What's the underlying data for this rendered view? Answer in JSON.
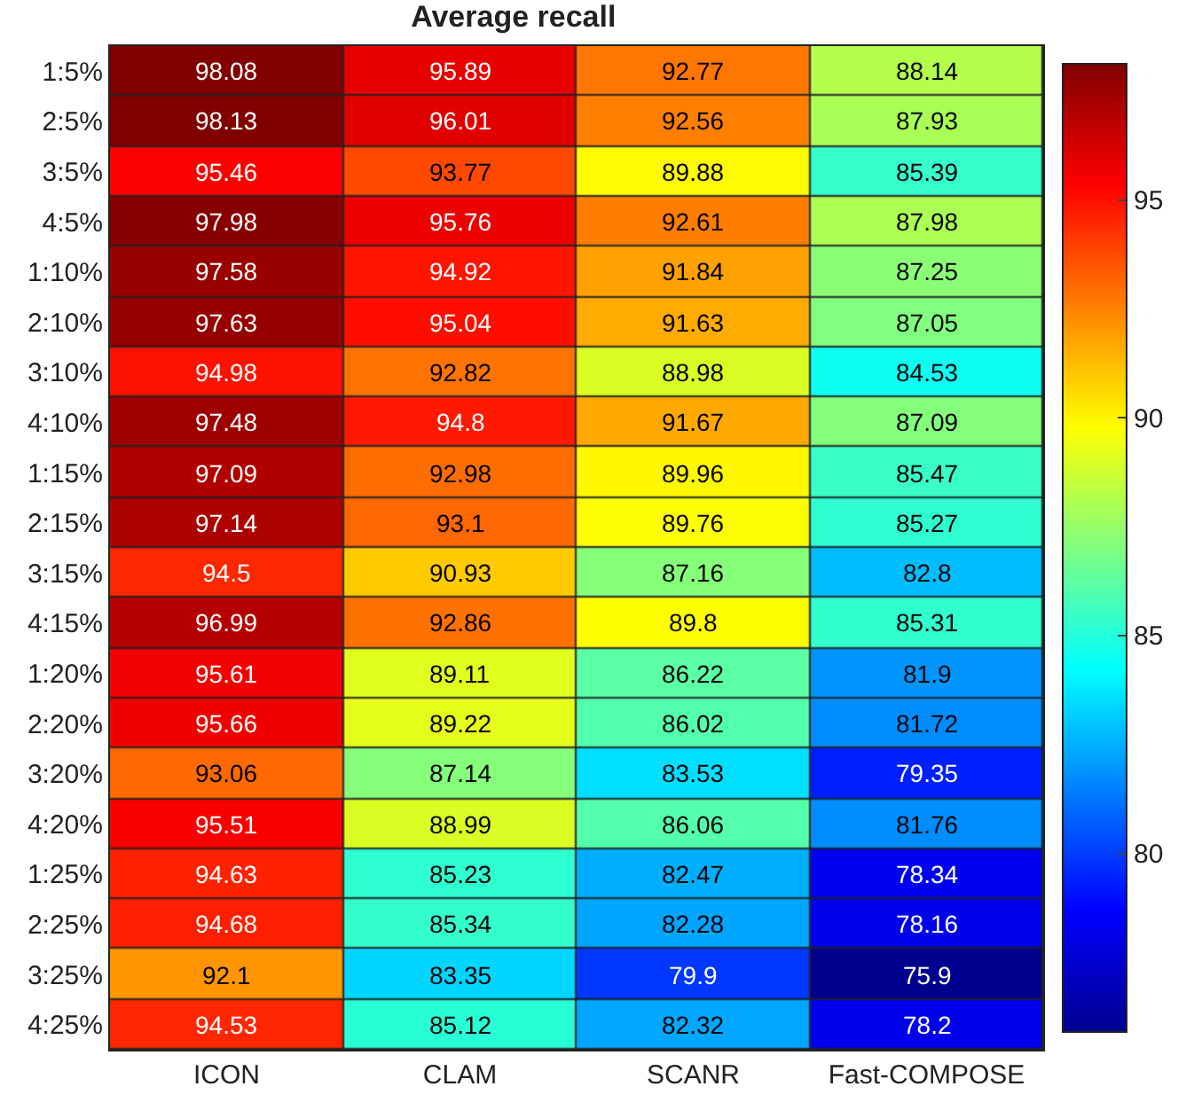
{
  "chart_data": {
    "type": "heatmap",
    "title": "Average recall",
    "categories": [
      "ICON",
      "CLAM",
      "SCANR",
      "Fast-COMPOSE"
    ],
    "y_categories": [
      "1:5%",
      "2:5%",
      "3:5%",
      "4:5%",
      "1:10%",
      "2:10%",
      "3:10%",
      "4:10%",
      "1:15%",
      "2:15%",
      "3:15%",
      "4:15%",
      "1:20%",
      "2:20%",
      "3:20%",
      "4:20%",
      "1:25%",
      "2:25%",
      "3:25%",
      "4:25%"
    ],
    "cells": [
      [
        98.08,
        95.89,
        92.77,
        88.14
      ],
      [
        98.13,
        96.01,
        92.56,
        87.93
      ],
      [
        95.46,
        93.77,
        89.88,
        85.39
      ],
      [
        97.98,
        95.76,
        92.61,
        87.98
      ],
      [
        97.58,
        94.92,
        91.84,
        87.25
      ],
      [
        97.63,
        95.04,
        91.63,
        87.05
      ],
      [
        94.98,
        92.82,
        88.98,
        84.53
      ],
      [
        97.48,
        94.8,
        91.67,
        87.09
      ],
      [
        97.09,
        92.98,
        89.96,
        85.47
      ],
      [
        97.14,
        93.1,
        89.76,
        85.27
      ],
      [
        94.5,
        90.93,
        87.16,
        82.8
      ],
      [
        96.99,
        92.86,
        89.8,
        85.31
      ],
      [
        95.61,
        89.11,
        86.22,
        81.9
      ],
      [
        95.66,
        89.22,
        86.02,
        81.72
      ],
      [
        93.06,
        87.14,
        83.53,
        79.35
      ],
      [
        95.51,
        88.99,
        86.06,
        81.76
      ],
      [
        94.63,
        85.23,
        82.47,
        78.34
      ],
      [
        94.68,
        85.34,
        82.28,
        78.16
      ],
      [
        92.1,
        83.35,
        79.9,
        75.9
      ],
      [
        94.53,
        85.12,
        82.32,
        78.2
      ]
    ],
    "clim": [
      75.9,
      98.13
    ],
    "cticks": [
      80,
      85,
      90,
      95
    ],
    "data_labels": true
  }
}
